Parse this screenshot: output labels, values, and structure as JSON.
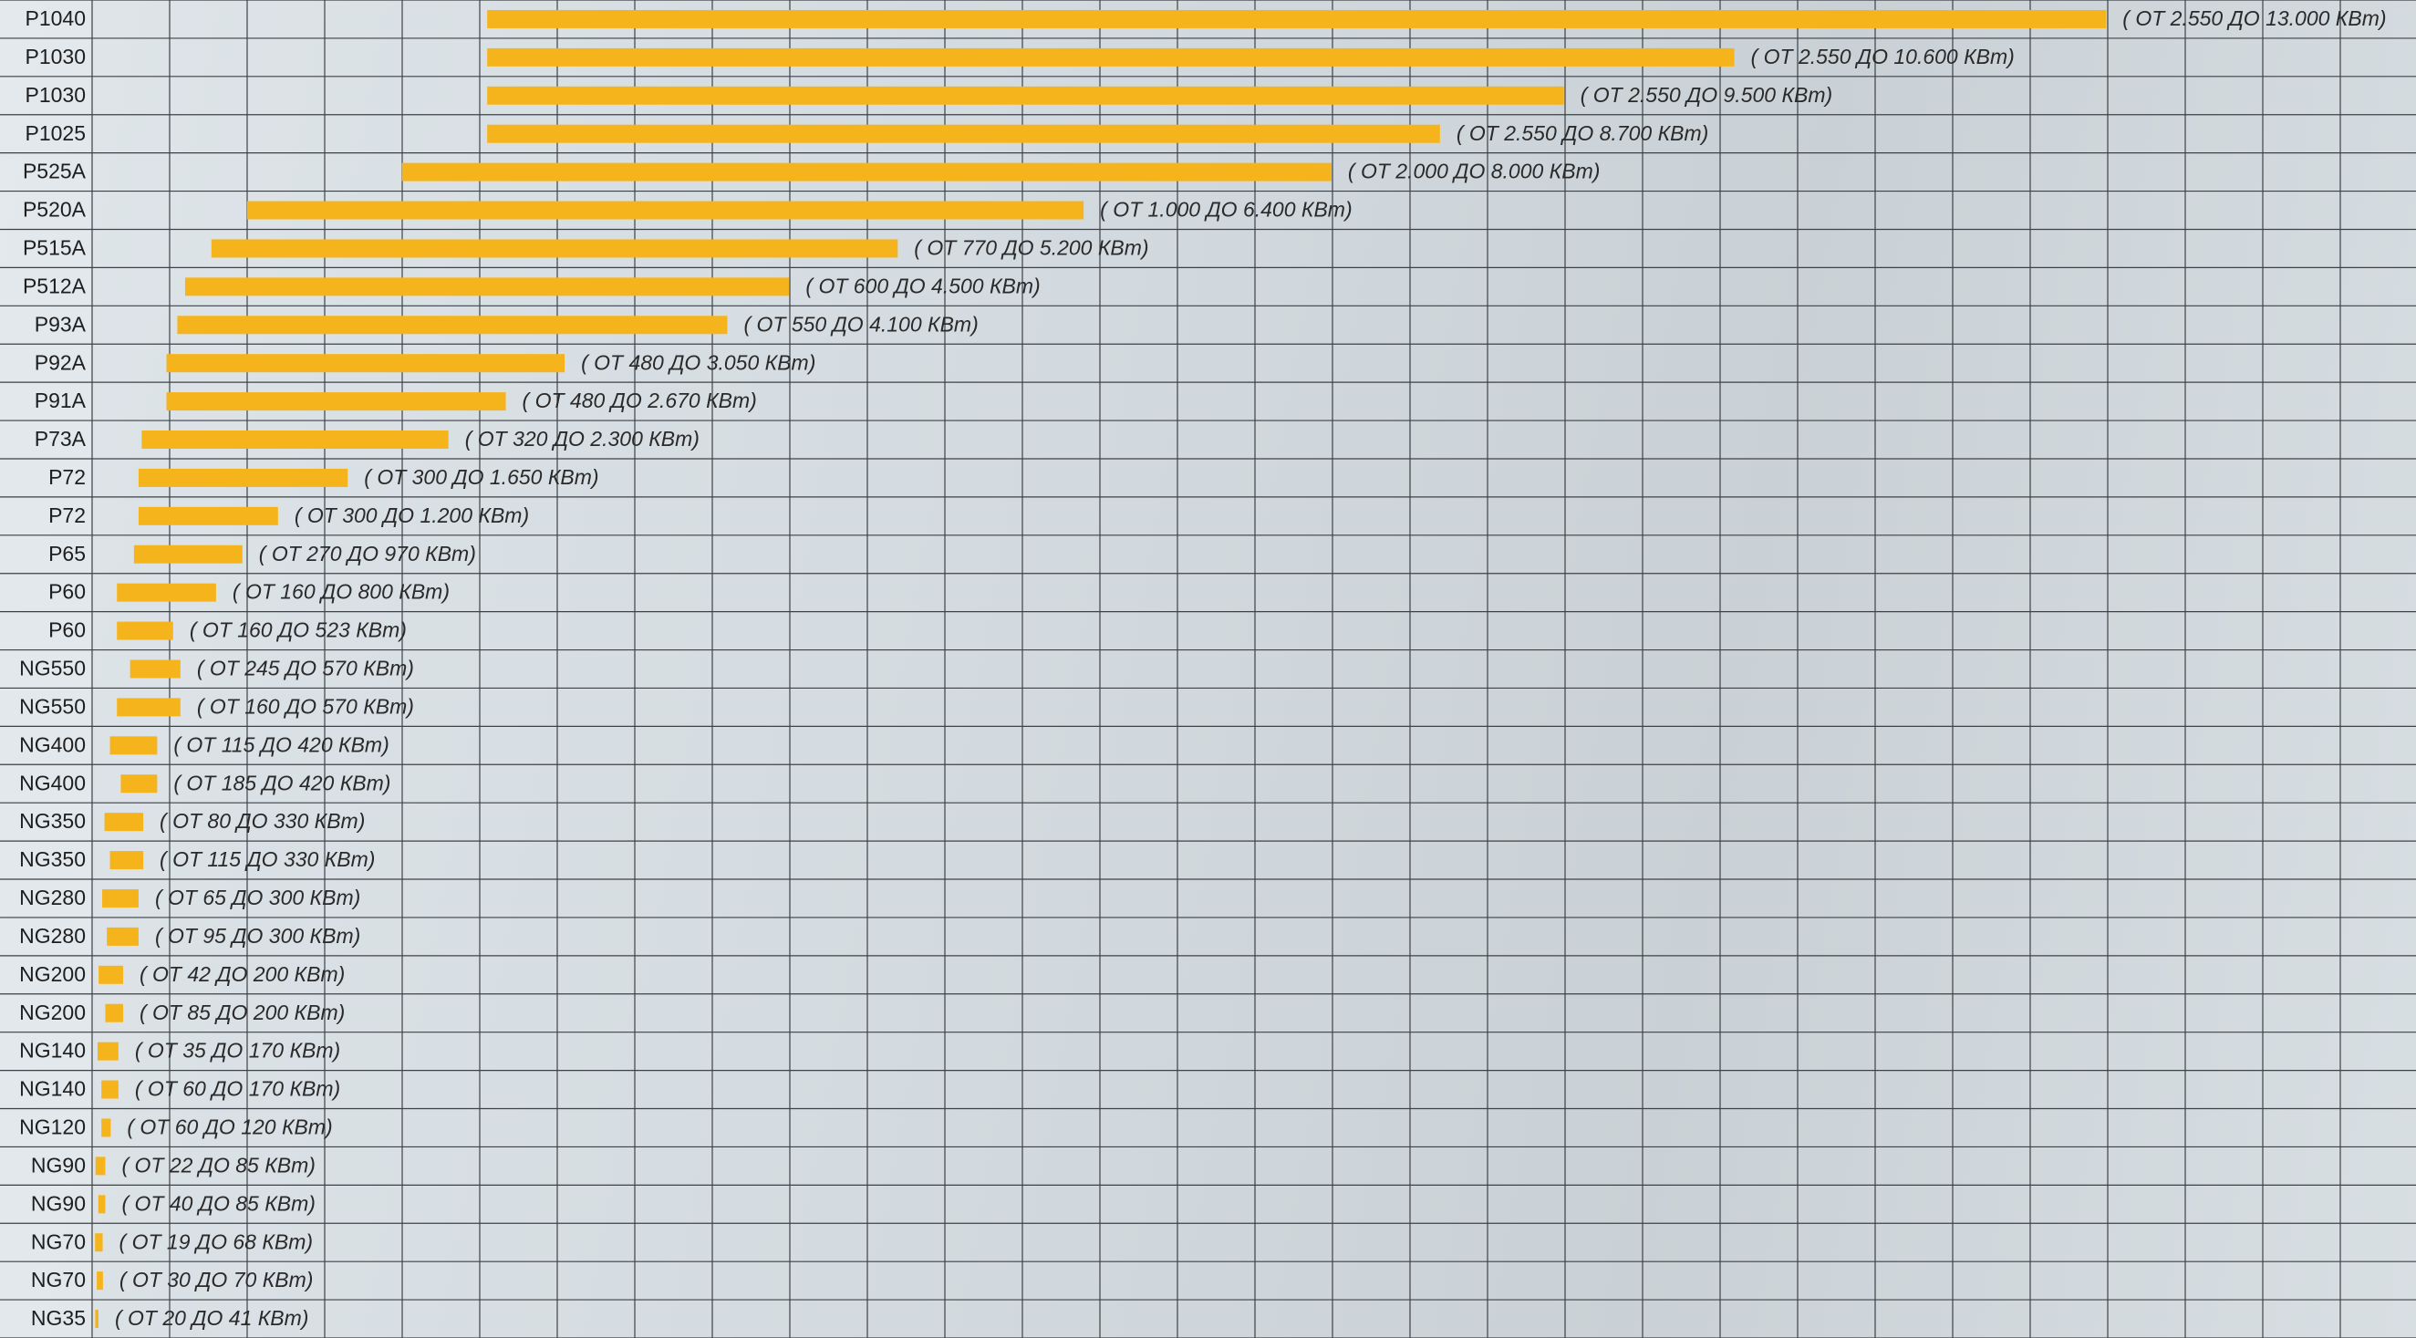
{
  "chart_data": {
    "type": "range-bar",
    "orientation": "horizontal",
    "color": "#f6b41c",
    "xlim": [
      0,
      15000
    ],
    "categories": [
      "P1040",
      "P1030",
      "P1030",
      "P1025",
      "P525A",
      "P520A",
      "P515A",
      "P512A",
      "P93A",
      "P92A",
      "P91A",
      "P73A",
      "P72",
      "P72",
      "P65",
      "P60",
      "P60",
      "NG550",
      "NG550",
      "NG400",
      "NG400",
      "NG350",
      "NG350",
      "NG280",
      "NG280",
      "NG200",
      "NG200",
      "NG140",
      "NG140",
      "NG120",
      "NG90",
      "NG90",
      "NG70",
      "NG70",
      "NG35"
    ],
    "low": [
      2550,
      2550,
      2550,
      2550,
      2000,
      1000,
      770,
      600,
      550,
      480,
      480,
      320,
      300,
      300,
      270,
      160,
      160,
      245,
      160,
      115,
      185,
      80,
      115,
      65,
      95,
      42,
      85,
      35,
      60,
      60,
      22,
      40,
      19,
      30,
      20
    ],
    "high": [
      13000,
      10600,
      9500,
      8700,
      8000,
      6400,
      5200,
      4500,
      4100,
      3050,
      2670,
      2300,
      1650,
      1200,
      970,
      800,
      523,
      570,
      570,
      420,
      420,
      330,
      330,
      300,
      300,
      200,
      200,
      170,
      170,
      120,
      85,
      85,
      68,
      70,
      41
    ],
    "value_labels": [
      "( ОТ 2.550 ДО 13.000 КВт)",
      "( ОТ 2.550 ДО 10.600 КВт)",
      "( ОТ 2.550 ДО 9.500 КВт)",
      "( ОТ 2.550 ДО 8.700 КВт)",
      "( ОТ 2.000 ДО 8.000 КВт)",
      "( ОТ 1.000 ДО 6.400 КВт)",
      "( ОТ 770 ДО 5.200 КВт)",
      "( ОТ 600 ДО 4.500 КВт)",
      "( ОТ 550 ДО 4.100 КВт)",
      "( ОТ 480 ДО 3.050 КВт)",
      "( ОТ 480 ДО 2.670 КВт)",
      "( ОТ 320 ДО 2.300 КВт)",
      "( ОТ 300 ДО 1.650 КВт)",
      "( ОТ 300 ДО 1.200 КВт)",
      "( ОТ 270 ДО 970 КВт)",
      "( ОТ 160 ДО 800 КВт)",
      "( ОТ 160 ДО 523 КВт)",
      "( ОТ 245 ДО 570 КВт)",
      "( ОТ 160 ДО 570 КВт)",
      "( ОТ 115 ДО 420 КВт)",
      "( ОТ 185 ДО 420 КВт)",
      "( ОТ 80 ДО 330 КВт)",
      "( ОТ 115 ДО 330 КВт)",
      "( ОТ 65 ДО 300 КВт)",
      "( ОТ 95 ДО 300 КВт)",
      "( ОТ 42 ДО 200 КВт)",
      "( ОТ 85 ДО 200 КВт)",
      "( ОТ 35 ДО 170 КВт)",
      "( ОТ 60 ДО 170 КВт)",
      "( ОТ 60 ДО 120 КВт)",
      "( ОТ 22 ДО 85 КВт)",
      "( ОТ 40 ДО 85 КВт)",
      "( ОТ 19 ДО 68 КВт)",
      "( ОТ 30 ДО 70 КВт)",
      "( ОТ 20 ДО 41 КВт)"
    ]
  }
}
